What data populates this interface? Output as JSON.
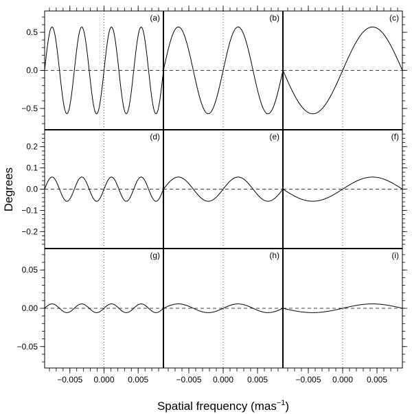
{
  "chart_data": {
    "type": "line",
    "xlabel_main": "Spatial frequency (mas",
    "xlabel_sup": "−1",
    "xlabel_close": ")",
    "ylabel": "Degrees",
    "columns": [
      {
        "xlim": [
          -0.0087,
          0.0087
        ],
        "x_ticks": [
          "−0.005",
          "0.000",
          "0.005"
        ],
        "x_tick_values": [
          -0.005,
          0.0,
          0.005
        ]
      },
      {
        "xlim": [
          -0.0087,
          0.0087
        ],
        "x_ticks": [
          "−0.005",
          "0.000",
          "0.005"
        ],
        "x_tick_values": [
          -0.005,
          0.0,
          0.005
        ]
      },
      {
        "xlim": [
          -0.0087,
          0.0087
        ],
        "x_ticks": [
          "−0.005",
          "0.000",
          "0.005"
        ],
        "x_tick_values": [
          -0.005,
          0.0,
          0.005
        ]
      }
    ],
    "rows": [
      {
        "ylim": [
          -0.78,
          0.78
        ],
        "y_ticks": [
          "0.5",
          "0.0",
          "−0.5"
        ],
        "y_tick_values": [
          0.5,
          0.0,
          -0.5
        ]
      },
      {
        "ylim": [
          -0.28,
          0.28
        ],
        "y_ticks": [
          "0.2",
          "0.1",
          "0.0",
          "−0.1",
          "−0.2"
        ],
        "y_tick_values": [
          0.2,
          0.1,
          0.0,
          -0.1,
          -0.2
        ]
      },
      {
        "ylim": [
          -0.078,
          0.078
        ],
        "y_ticks": [
          "0.05",
          "0.00",
          "−0.05"
        ],
        "y_tick_values": [
          0.05,
          0.0,
          -0.05
        ]
      }
    ],
    "panels": [
      {
        "label": "(a)",
        "row": 0,
        "col": 0,
        "amplitude": 0.57,
        "cycles": 4,
        "phase": "sin"
      },
      {
        "label": "(b)",
        "row": 0,
        "col": 1,
        "amplitude": 0.57,
        "cycles": 2,
        "phase": "sin"
      },
      {
        "label": "(c)",
        "row": 0,
        "col": 2,
        "amplitude": 0.57,
        "cycles": 1,
        "phase": "negsin"
      },
      {
        "label": "(d)",
        "row": 1,
        "col": 0,
        "amplitude": 0.057,
        "cycles": 4,
        "phase": "sin"
      },
      {
        "label": "(e)",
        "row": 1,
        "col": 1,
        "amplitude": 0.057,
        "cycles": 2,
        "phase": "sin"
      },
      {
        "label": "(f)",
        "row": 1,
        "col": 2,
        "amplitude": 0.057,
        "cycles": 1,
        "phase": "negsin"
      },
      {
        "label": "(g)",
        "row": 2,
        "col": 0,
        "amplitude": 0.0057,
        "cycles": 4,
        "phase": "sin"
      },
      {
        "label": "(h)",
        "row": 2,
        "col": 1,
        "amplitude": 0.0057,
        "cycles": 2,
        "phase": "sin"
      },
      {
        "label": "(i)",
        "row": 2,
        "col": 2,
        "amplitude": 0.0057,
        "cycles": 1,
        "phase": "negsin"
      }
    ],
    "grid": false
  }
}
